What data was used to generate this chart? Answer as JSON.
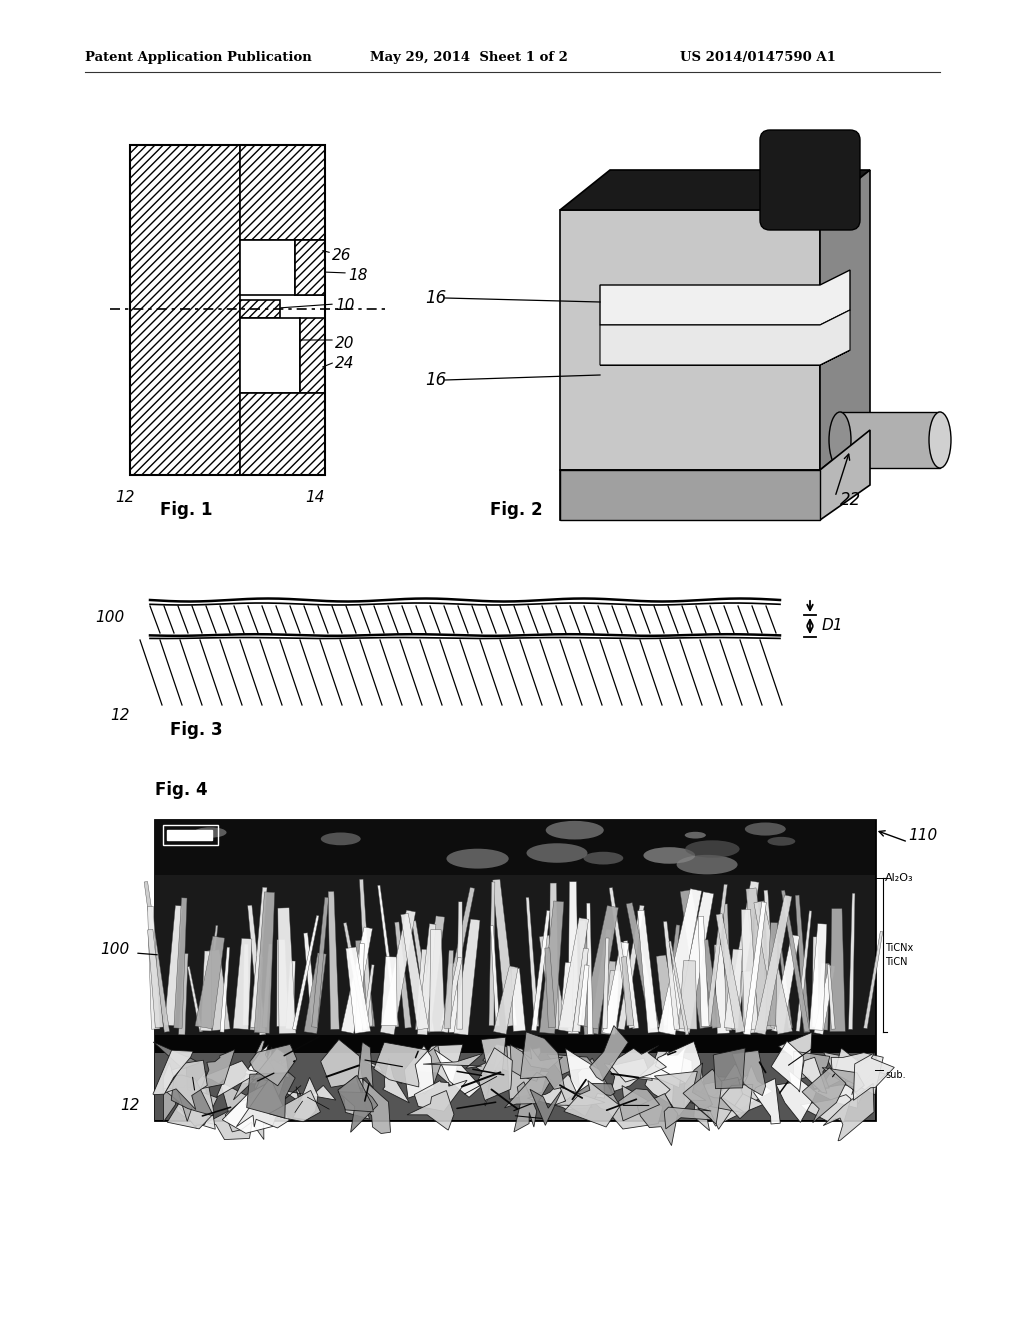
{
  "bg_color": "#ffffff",
  "header_left": "Patent Application Publication",
  "header_mid": "May 29, 2014  Sheet 1 of 2",
  "header_right": "US 2014/0147590 A1",
  "fig1_label": "Fig. 1",
  "fig2_label": "Fig. 2",
  "fig3_label": "Fig. 3",
  "fig4_label": "Fig. 4",
  "text_color": "#000000"
}
